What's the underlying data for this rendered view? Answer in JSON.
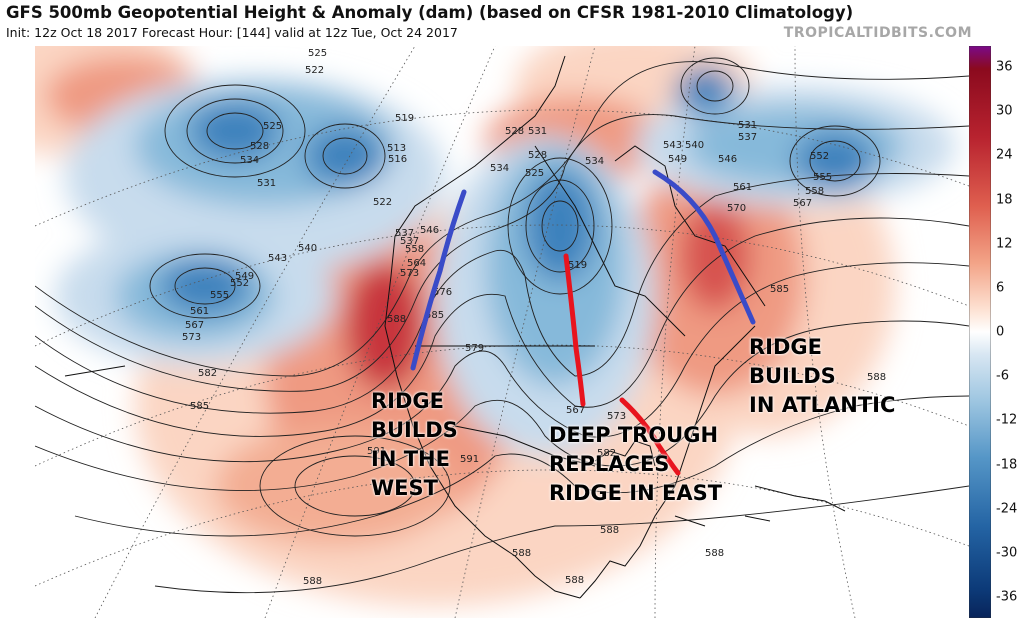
{
  "header": {
    "title": "GFS 500mb Geopotential Height & Anomaly (dam) (based on CFSR 1981-2010 Climatology)",
    "subtitle": "Init: 12z Oct 18 2017   Forecast Hour: [144]   valid at 12z Tue, Oct 24 2017",
    "brand": "TROPICALTIDBITS.COM"
  },
  "colorbar": {
    "ticks": [
      "36",
      "30",
      "24",
      "18",
      "12",
      "6",
      "0",
      "-6",
      "-12",
      "-18",
      "-24",
      "-30",
      "-36"
    ],
    "colors": {
      "deep_red": "#8b0a1e",
      "red": "#c8343c",
      "light_red": "#ef9a82",
      "pale_red": "#fbd5c3",
      "white": "#ffffff",
      "pale_blue": "#c8dced",
      "light_blue": "#86b9da",
      "blue": "#3d82bd",
      "deep_blue": "#0c3a78",
      "purple": "#7a0a8a"
    }
  },
  "contour_labels": [
    "525",
    "522",
    "528",
    "534",
    "525",
    "531",
    "519",
    "513",
    "516",
    "522",
    "537",
    "534",
    "528",
    "525",
    "531",
    "528",
    "534",
    "543",
    "549",
    "540",
    "546",
    "531",
    "537",
    "552",
    "555",
    "558",
    "567",
    "561",
    "570",
    "585",
    "540",
    "543",
    "549",
    "552",
    "555",
    "561",
    "567",
    "573",
    "558",
    "564",
    "546",
    "537",
    "573",
    "576",
    "579",
    "582",
    "585",
    "588",
    "585",
    "591",
    "591",
    "588",
    "588",
    "588",
    "588",
    "588",
    "582",
    "573",
    "567",
    "588",
    "519"
  ],
  "annotations": {
    "west": "RIDGE\nBUILDS\nIN THE\nWEST",
    "east": "DEEP TROUGH\nREPLACES\nRIDGE IN EAST",
    "atlantic": "RIDGE\nBUILDS\nIN ATLANTIC"
  },
  "overlay_colors": {
    "ridge_line": "#3a4bc8",
    "trough_line": "#e8141e"
  }
}
